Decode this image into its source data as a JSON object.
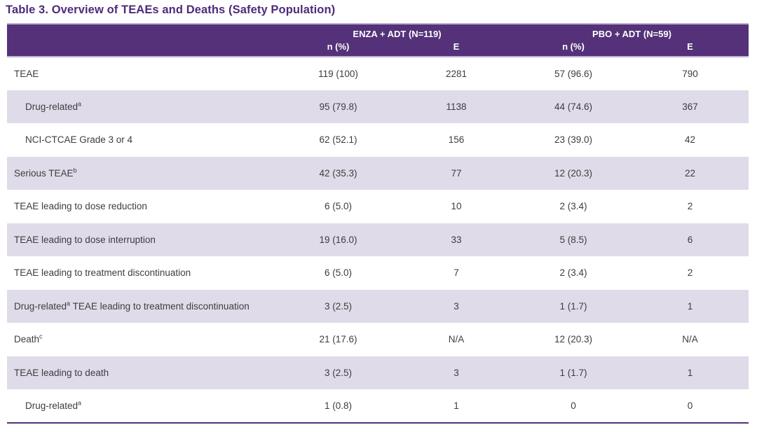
{
  "title": "Table 3. Overview of TEAEs and Deaths (Safety Population)",
  "colors": {
    "header_bg": "#543179",
    "row_shade": "#e0dbe9",
    "title_color": "#4d2a7c",
    "rule_purple": "#54317a",
    "header_edge_light": "#bcaad2",
    "header_edge_bottom": "#c3b4d7",
    "text_color": "#3d3d3d"
  },
  "table": {
    "groups": [
      {
        "label": "ENZA + ADT (N=119)"
      },
      {
        "label": "PBO + ADT (N=59)"
      }
    ],
    "subheaders": [
      "n (%)",
      "E",
      "n (%)",
      "E"
    ],
    "rows": [
      {
        "label": "TEAE",
        "indent": 0,
        "values": [
          "119 (100)",
          "2281",
          "57 (96.6)",
          "790"
        ]
      },
      {
        "label": "Drug-related^a^",
        "indent": 1,
        "values": [
          "95 (79.8)",
          "1138",
          "44 (74.6)",
          "367"
        ]
      },
      {
        "label": "NCI-CTCAE Grade 3 or 4",
        "indent": 1,
        "values": [
          "62 (52.1)",
          "156",
          "23 (39.0)",
          "42"
        ]
      },
      {
        "label": "Serious TEAE^b^",
        "indent": 0,
        "values": [
          "42 (35.3)",
          "77",
          "12 (20.3)",
          "22"
        ]
      },
      {
        "label": "TEAE leading to dose reduction",
        "indent": 0,
        "values": [
          "6 (5.0)",
          "10",
          "2 (3.4)",
          "2"
        ]
      },
      {
        "label": "TEAE leading to dose interruption",
        "indent": 0,
        "values": [
          "19 (16.0)",
          "33",
          "5 (8.5)",
          "6"
        ]
      },
      {
        "label": "TEAE leading to treatment discontinuation",
        "indent": 0,
        "values": [
          "6 (5.0)",
          "7",
          "2 (3.4)",
          "2"
        ]
      },
      {
        "label": "Drug-related^a^ TEAE leading to treatment discontinuation",
        "indent": 0,
        "values": [
          "3 (2.5)",
          "3",
          "1 (1.7)",
          "1"
        ]
      },
      {
        "label": "Death^c^",
        "indent": 0,
        "values": [
          "21 (17.6)",
          "N/A",
          "12 (20.3)",
          "N/A"
        ]
      },
      {
        "label": "TEAE leading to death",
        "indent": 0,
        "values": [
          "3 (2.5)",
          "3",
          "1 (1.7)",
          "1"
        ]
      },
      {
        "label": "Drug-related^a^",
        "indent": 1,
        "values": [
          "1 (0.8)",
          "1",
          "0",
          "0"
        ]
      }
    ]
  }
}
